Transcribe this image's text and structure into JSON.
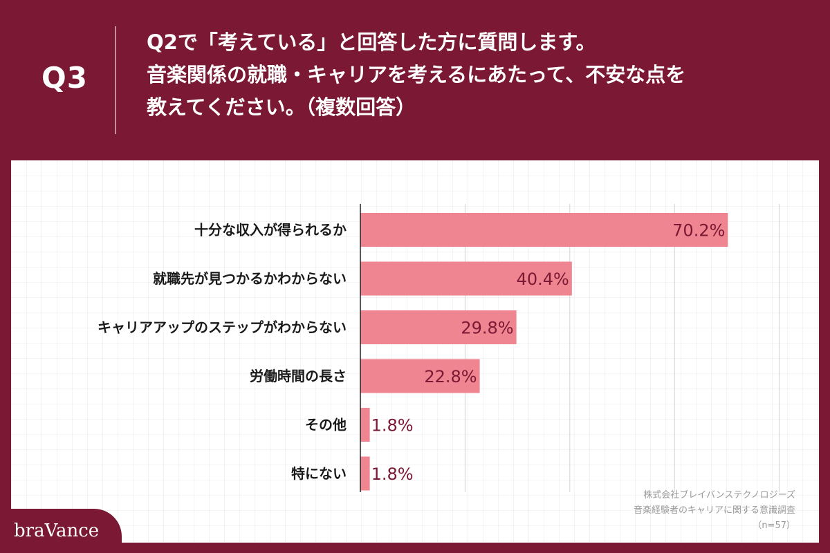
{
  "header": {
    "q_label": "Q3",
    "question_lines": [
      "Q2で「考えている」と回答した方に質問します。",
      "音楽関係の就職・キャリアを考えるにあたって、不安な点を",
      "教えてください。（複数回答）"
    ]
  },
  "colors": {
    "brand": "#7b1834",
    "bar": "#ee8590",
    "value_text": "#7b1834",
    "background": "#ffffff"
  },
  "chart_data": {
    "type": "bar",
    "orientation": "horizontal",
    "categories": [
      "十分な収入が得られるか",
      "就職先が見つかるかわからない",
      "キャリアアップのステップがわからない",
      "労働時間の長さ",
      "その他",
      "特にない"
    ],
    "values": [
      70.2,
      40.4,
      29.8,
      22.8,
      1.8,
      1.8
    ],
    "value_labels": [
      "70.2%",
      "40.4%",
      "29.8%",
      "22.8%",
      "1.8%",
      "1.8%"
    ],
    "xlim": [
      0,
      80
    ],
    "grid": "vertical",
    "unit": "%"
  },
  "source": {
    "line1": "株式会社ブレイバンステクノロジーズ",
    "line2": "音楽経験者のキャリアに関する意識調査",
    "line3": "（n=57）"
  },
  "logo": {
    "text": "braVance"
  }
}
